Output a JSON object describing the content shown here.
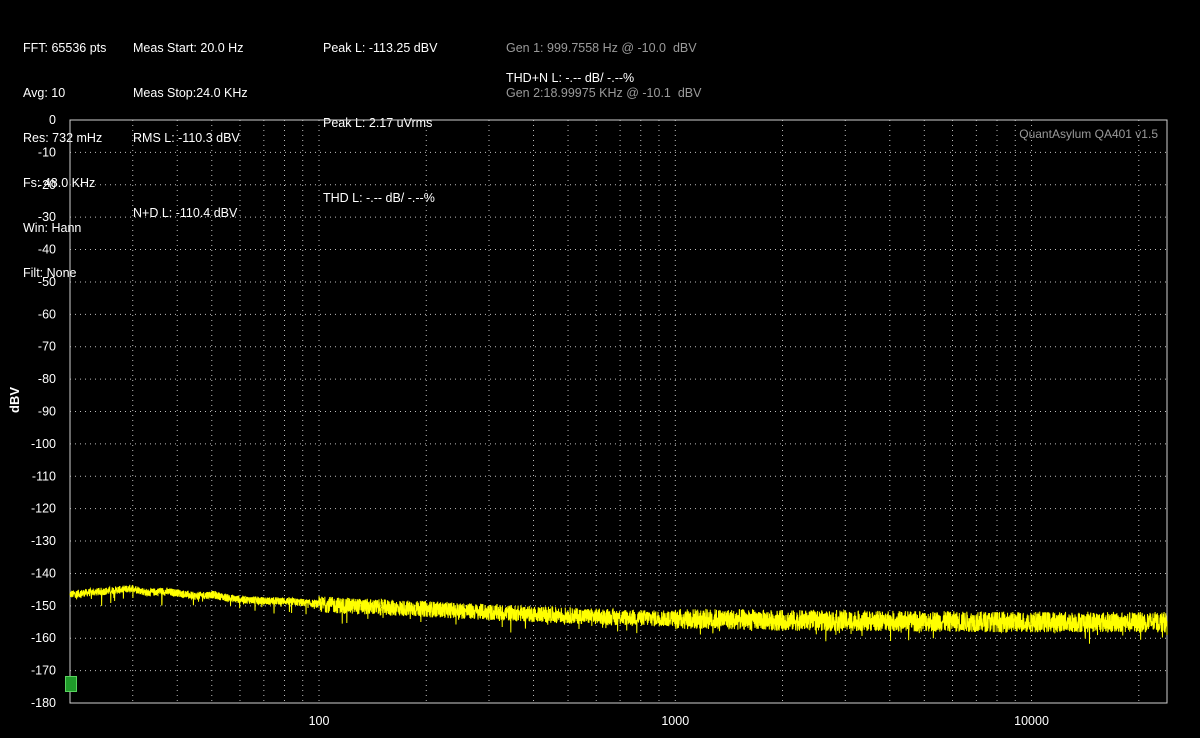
{
  "info": {
    "col1": [
      "FFT: 65536 pts",
      "Avg: 10",
      "Res: 732 mHz",
      "Fs: 48.0 KHz",
      "Win: Hann",
      "Filt: None"
    ],
    "col2": [
      "Meas Start: 20.0 Hz",
      "Meas Stop:24.0 KHz",
      "RMS L: -110.3 dBV",
      "",
      "N+D L: -110.4 dBV"
    ],
    "col3": [
      "Peak L: -113.25 dBV",
      "",
      "Peak L: 2.17 uVrms",
      "",
      "THD L: -.-- dB/ -.--%"
    ],
    "gen": [
      "Gen 1: 999.7558 Hz @ -10.0  dBV",
      "Gen 2:18.99975 KHz @ -10.1  dBV"
    ],
    "thdn": "THD+N L: -.-- dB/ -.--%"
  },
  "watermark": "QuantAsylum QA401 v1.5",
  "colors": {
    "trace": "#ffff00",
    "grid": "#bdbdbd",
    "background": "#000000",
    "marker": "#1f9a2a"
  },
  "chart_data": {
    "type": "line",
    "x_scale": "log",
    "xlim": [
      20,
      24000
    ],
    "ylim": [
      -180,
      0
    ],
    "ylabel": "dBV",
    "yticks": [
      0,
      -10,
      -20,
      -30,
      -40,
      -50,
      -60,
      -70,
      -80,
      -90,
      -100,
      -110,
      -120,
      -130,
      -140,
      -150,
      -160,
      -170,
      -180
    ],
    "xticks": [
      100,
      1000,
      10000
    ],
    "grid": true,
    "series": [
      {
        "x": [
          20,
          22,
          25,
          28,
          30,
          33,
          36,
          40,
          45,
          50,
          55,
          60,
          70,
          80,
          90,
          100,
          120,
          150,
          200,
          250,
          300,
          400,
          500,
          700,
          1000,
          1500,
          2000,
          3000,
          5000,
          7000,
          10000,
          15000,
          20000,
          24000
        ],
        "y": [
          -146.5,
          -146,
          -145.5,
          -145,
          -144.5,
          -146,
          -145.5,
          -146,
          -147,
          -146.5,
          -147.5,
          -148,
          -148.5,
          -148.5,
          -149,
          -149.5,
          -150,
          -150.5,
          -151,
          -151.5,
          -152,
          -152.5,
          -153,
          -153.5,
          -154,
          -154.2,
          -154.5,
          -154.6,
          -154.8,
          -154.9,
          -155,
          -155,
          -155.1,
          -155
        ]
      }
    ]
  }
}
